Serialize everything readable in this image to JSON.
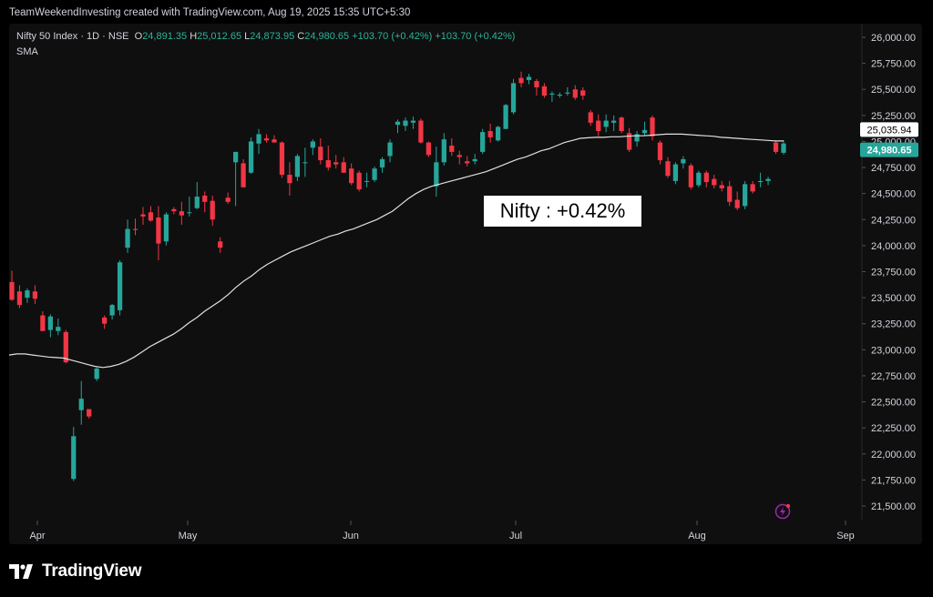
{
  "header": {
    "text": "TeamWeekendInvesting created with TradingView.com, Aug 19, 2025 15:35 UTC+5:30"
  },
  "legend": {
    "symbol": "Nifty 50 Index · 1D · NSE",
    "open_label": "O",
    "open": "24,891.35",
    "high_label": "H",
    "high": "25,012.65",
    "low_label": "L",
    "low": "24,873.95",
    "close_label": "C",
    "close": "24,980.65",
    "change": "+103.70 (+0.42%)",
    "change2": "+103.70 (+0.42%)",
    "indicator": "SMA"
  },
  "annotation": "Nifty : +0.42%",
  "footer": {
    "brand": "TradingView"
  },
  "colors": {
    "up": "#26a69a",
    "down": "#f23645",
    "sma": "#e0e0e0",
    "background": "#0f0f0f",
    "grid": "#1e1e1e"
  },
  "chart_data": {
    "type": "candlestick",
    "y_axis": {
      "ticks": [
        26000,
        25750,
        25500,
        25250,
        25000,
        24750,
        24500,
        24250,
        24000,
        23750,
        23500,
        23250,
        23000,
        22750,
        22500,
        22250,
        22000,
        21750,
        21500
      ],
      "tick_labels": [
        "26,000.00",
        "25,750.00",
        "25,500.00",
        "25,250.00",
        "25,000.00",
        "24,750.00",
        "24,500.00",
        "24,250.00",
        "24,000.00",
        "23,750.00",
        "23,500.00",
        "23,250.00",
        "23,000.00",
        "22,750.00",
        "22,500.00",
        "22,250.00",
        "22,000.00",
        "21,750.00",
        "21,500.00"
      ],
      "range": [
        21380,
        26080
      ]
    },
    "x_axis": {
      "labels": [
        "Apr",
        "May",
        "Jun",
        "Jul",
        "Aug",
        "Sep"
      ]
    },
    "price_labels": [
      {
        "name": "sma",
        "value": 25035.94,
        "text": "25,035.94"
      },
      {
        "name": "last",
        "value": 24980.65,
        "text": "24,980.65"
      }
    ],
    "candles": [
      {
        "o": 23650,
        "h": 23760,
        "l": 23470,
        "c": 23480
      },
      {
        "o": 23560,
        "h": 23620,
        "l": 23400,
        "c": 23430
      },
      {
        "o": 23500,
        "h": 23590,
        "l": 23450,
        "c": 23570
      },
      {
        "o": 23560,
        "h": 23620,
        "l": 23440,
        "c": 23490
      },
      {
        "o": 23330,
        "h": 23370,
        "l": 23180,
        "c": 23180
      },
      {
        "o": 23190,
        "h": 23340,
        "l": 23120,
        "c": 23320
      },
      {
        "o": 23180,
        "h": 23300,
        "l": 23140,
        "c": 23220
      },
      {
        "o": 23170,
        "h": 23190,
        "l": 22870,
        "c": 22880
      },
      {
        "o": 21760,
        "h": 22260,
        "l": 21740,
        "c": 22170
      },
      {
        "o": 22420,
        "h": 22700,
        "l": 22280,
        "c": 22530
      },
      {
        "o": 22430,
        "h": 22430,
        "l": 22340,
        "c": 22360
      },
      {
        "o": 22720,
        "h": 22830,
        "l": 22700,
        "c": 22820
      },
      {
        "o": 23310,
        "h": 23330,
        "l": 23200,
        "c": 23250
      },
      {
        "o": 23330,
        "h": 23440,
        "l": 23290,
        "c": 23430
      },
      {
        "o": 23380,
        "h": 23860,
        "l": 23330,
        "c": 23840
      },
      {
        "o": 23980,
        "h": 24250,
        "l": 23930,
        "c": 24160
      },
      {
        "o": 24160,
        "h": 24260,
        "l": 24100,
        "c": 24150
      },
      {
        "o": 24300,
        "h": 24370,
        "l": 24200,
        "c": 24280
      },
      {
        "o": 24320,
        "h": 24380,
        "l": 24230,
        "c": 24240
      },
      {
        "o": 24270,
        "h": 24380,
        "l": 23860,
        "c": 24020
      },
      {
        "o": 24040,
        "h": 24320,
        "l": 24000,
        "c": 24300
      },
      {
        "o": 24350,
        "h": 24370,
        "l": 24300,
        "c": 24330
      },
      {
        "o": 24330,
        "h": 24420,
        "l": 24200,
        "c": 24290
      },
      {
        "o": 24320,
        "h": 24470,
        "l": 24280,
        "c": 24320
      },
      {
        "o": 24360,
        "h": 24610,
        "l": 24350,
        "c": 24470
      },
      {
        "o": 24480,
        "h": 24520,
        "l": 24320,
        "c": 24420
      },
      {
        "o": 24430,
        "h": 24480,
        "l": 24190,
        "c": 24250
      },
      {
        "o": 24040,
        "h": 24080,
        "l": 23930,
        "c": 23980
      },
      {
        "o": 24460,
        "h": 24510,
        "l": 24400,
        "c": 24420
      },
      {
        "o": 24800,
        "h": 24900,
        "l": 24380,
        "c": 24900
      },
      {
        "o": 24790,
        "h": 24830,
        "l": 24560,
        "c": 24560
      },
      {
        "o": 24700,
        "h": 25040,
        "l": 24690,
        "c": 25000
      },
      {
        "o": 24980,
        "h": 25120,
        "l": 24880,
        "c": 25070
      },
      {
        "o": 25030,
        "h": 25070,
        "l": 24990,
        "c": 25010
      },
      {
        "o": 25020,
        "h": 25060,
        "l": 24990,
        "c": 24990
      },
      {
        "o": 24990,
        "h": 25000,
        "l": 24650,
        "c": 24680
      },
      {
        "o": 24680,
        "h": 24800,
        "l": 24480,
        "c": 24600
      },
      {
        "o": 24660,
        "h": 24880,
        "l": 24620,
        "c": 24860
      },
      {
        "o": 24800,
        "h": 24940,
        "l": 24660,
        "c": 24800
      },
      {
        "o": 24940,
        "h": 25020,
        "l": 24870,
        "c": 25000
      },
      {
        "o": 24950,
        "h": 25030,
        "l": 24780,
        "c": 24820
      },
      {
        "o": 24820,
        "h": 24960,
        "l": 24720,
        "c": 24750
      },
      {
        "o": 24800,
        "h": 24870,
        "l": 24740,
        "c": 24780
      },
      {
        "o": 24800,
        "h": 24850,
        "l": 24700,
        "c": 24700
      },
      {
        "o": 24740,
        "h": 24790,
        "l": 24580,
        "c": 24600
      },
      {
        "o": 24700,
        "h": 24720,
        "l": 24520,
        "c": 24540
      },
      {
        "o": 24620,
        "h": 24700,
        "l": 24560,
        "c": 24620
      },
      {
        "o": 24630,
        "h": 24760,
        "l": 24610,
        "c": 24740
      },
      {
        "o": 24750,
        "h": 24850,
        "l": 24700,
        "c": 24830
      },
      {
        "o": 24860,
        "h": 25020,
        "l": 24800,
        "c": 24990
      },
      {
        "o": 25160,
        "h": 25210,
        "l": 25080,
        "c": 25190
      },
      {
        "o": 25150,
        "h": 25230,
        "l": 25100,
        "c": 25200
      },
      {
        "o": 25180,
        "h": 25240,
        "l": 25120,
        "c": 25200
      },
      {
        "o": 25200,
        "h": 25220,
        "l": 24980,
        "c": 24990
      },
      {
        "o": 24990,
        "h": 25000,
        "l": 24850,
        "c": 24870
      },
      {
        "o": 24570,
        "h": 24950,
        "l": 24470,
        "c": 24800
      },
      {
        "o": 24800,
        "h": 25080,
        "l": 24770,
        "c": 25020
      },
      {
        "o": 24960,
        "h": 25030,
        "l": 24860,
        "c": 24900
      },
      {
        "o": 24870,
        "h": 24910,
        "l": 24780,
        "c": 24850
      },
      {
        "o": 24810,
        "h": 24860,
        "l": 24760,
        "c": 24790
      },
      {
        "o": 24810,
        "h": 24880,
        "l": 24780,
        "c": 24830
      },
      {
        "o": 24900,
        "h": 25120,
        "l": 24880,
        "c": 25090
      },
      {
        "o": 25100,
        "h": 25170,
        "l": 24990,
        "c": 25040
      },
      {
        "o": 25010,
        "h": 25150,
        "l": 25000,
        "c": 25140
      },
      {
        "o": 25120,
        "h": 25360,
        "l": 25120,
        "c": 25350
      },
      {
        "o": 25280,
        "h": 25600,
        "l": 25260,
        "c": 25560
      },
      {
        "o": 25610,
        "h": 25670,
        "l": 25520,
        "c": 25560
      },
      {
        "o": 25590,
        "h": 25650,
        "l": 25550,
        "c": 25620
      },
      {
        "o": 25580,
        "h": 25600,
        "l": 25440,
        "c": 25520
      },
      {
        "o": 25530,
        "h": 25560,
        "l": 25420,
        "c": 25440
      },
      {
        "o": 25450,
        "h": 25480,
        "l": 25380,
        "c": 25460
      },
      {
        "o": 25440,
        "h": 25470,
        "l": 25420,
        "c": 25450
      },
      {
        "o": 25460,
        "h": 25520,
        "l": 25440,
        "c": 25470
      },
      {
        "o": 25500,
        "h": 25540,
        "l": 25400,
        "c": 25420
      },
      {
        "o": 25490,
        "h": 25520,
        "l": 25400,
        "c": 25440
      },
      {
        "o": 25280,
        "h": 25300,
        "l": 25150,
        "c": 25180
      },
      {
        "o": 25200,
        "h": 25260,
        "l": 25050,
        "c": 25100
      },
      {
        "o": 25140,
        "h": 25260,
        "l": 25090,
        "c": 25200
      },
      {
        "o": 25180,
        "h": 25250,
        "l": 25100,
        "c": 25200
      },
      {
        "o": 25230,
        "h": 25240,
        "l": 25080,
        "c": 25100
      },
      {
        "o": 25080,
        "h": 25130,
        "l": 24900,
        "c": 24920
      },
      {
        "o": 25000,
        "h": 25100,
        "l": 24950,
        "c": 25070
      },
      {
        "o": 25080,
        "h": 25190,
        "l": 25060,
        "c": 25110
      },
      {
        "o": 25230,
        "h": 25250,
        "l": 25010,
        "c": 25050
      },
      {
        "o": 24990,
        "h": 25010,
        "l": 24780,
        "c": 24820
      },
      {
        "o": 24810,
        "h": 24850,
        "l": 24650,
        "c": 24670
      },
      {
        "o": 24620,
        "h": 24800,
        "l": 24590,
        "c": 24780
      },
      {
        "o": 24790,
        "h": 24860,
        "l": 24740,
        "c": 24830
      },
      {
        "o": 24770,
        "h": 24790,
        "l": 24540,
        "c": 24560
      },
      {
        "o": 24580,
        "h": 24720,
        "l": 24560,
        "c": 24700
      },
      {
        "o": 24700,
        "h": 24720,
        "l": 24560,
        "c": 24610
      },
      {
        "o": 24640,
        "h": 24680,
        "l": 24550,
        "c": 24580
      },
      {
        "o": 24580,
        "h": 24620,
        "l": 24520,
        "c": 24550
      },
      {
        "o": 24570,
        "h": 24620,
        "l": 24380,
        "c": 24420
      },
      {
        "o": 24440,
        "h": 24520,
        "l": 24340,
        "c": 24360
      },
      {
        "o": 24380,
        "h": 24620,
        "l": 24350,
        "c": 24590
      },
      {
        "o": 24590,
        "h": 24620,
        "l": 24500,
        "c": 24520
      },
      {
        "o": 24610,
        "h": 24700,
        "l": 24560,
        "c": 24620
      },
      {
        "o": 24620,
        "h": 24660,
        "l": 24580,
        "c": 24640
      },
      {
        "o": 24990,
        "h": 25010,
        "l": 24880,
        "c": 24900
      },
      {
        "o": 24891.35,
        "h": 25012.65,
        "l": 24873.95,
        "c": 24980.65
      }
    ],
    "sma": [
      22950,
      22960,
      22960,
      22950,
      22940,
      22930,
      22925,
      22920,
      22900,
      22880,
      22860,
      22840,
      22830,
      22840,
      22860,
      22890,
      22930,
      22980,
      23030,
      23070,
      23110,
      23150,
      23200,
      23260,
      23310,
      23370,
      23420,
      23470,
      23530,
      23600,
      23660,
      23710,
      23770,
      23820,
      23860,
      23900,
      23940,
      23970,
      24000,
      24030,
      24060,
      24090,
      24110,
      24140,
      24160,
      24190,
      24220,
      24250,
      24290,
      24330,
      24390,
      24450,
      24500,
      24540,
      24570,
      24590,
      24610,
      24630,
      24650,
      24670,
      24690,
      24710,
      24740,
      24770,
      24800,
      24830,
      24850,
      24880,
      24910,
      24930,
      24960,
      24990,
      25010,
      25030,
      25035,
      25040,
      25040,
      25045,
      25045,
      25050,
      25055,
      25055,
      25060,
      25065,
      25070,
      25070,
      25070,
      25065,
      25060,
      25055,
      25050,
      25040,
      25035,
      25030,
      25025,
      25020,
      25015,
      25010,
      25005,
      25005
    ]
  }
}
